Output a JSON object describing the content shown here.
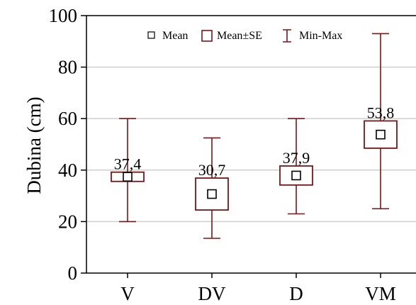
{
  "chart_data": {
    "type": "boxplot",
    "ylabel": "Dubina (cm)",
    "xlabel": "",
    "ylim": [
      0,
      100
    ],
    "yticks": [
      "0",
      "20",
      "40",
      "60",
      "80",
      "100"
    ],
    "grid": true,
    "legend_position": "top",
    "legend": {
      "mean": "Mean",
      "se": "Mean±SE",
      "minmax": "Min-Max"
    },
    "colors": {
      "box": "#7b1416",
      "marker": "#000000",
      "grid": "#cfcfcf"
    },
    "categories": [
      "V",
      "DV",
      "D",
      "VM"
    ],
    "mean_labels": [
      "37,4",
      "30,7",
      "37,9",
      "53,8"
    ],
    "series": [
      {
        "mean": 37.4,
        "se_low": 35.6,
        "se_high": 39.2,
        "min": 20,
        "max": 60
      },
      {
        "mean": 30.7,
        "se_low": 24.5,
        "se_high": 36.9,
        "min": 13.5,
        "max": 52.5
      },
      {
        "mean": 37.9,
        "se_low": 34.2,
        "se_high": 41.6,
        "min": 23,
        "max": 60
      },
      {
        "mean": 53.8,
        "se_low": 48.5,
        "se_high": 59.1,
        "min": 25,
        "max": 93
      }
    ]
  }
}
